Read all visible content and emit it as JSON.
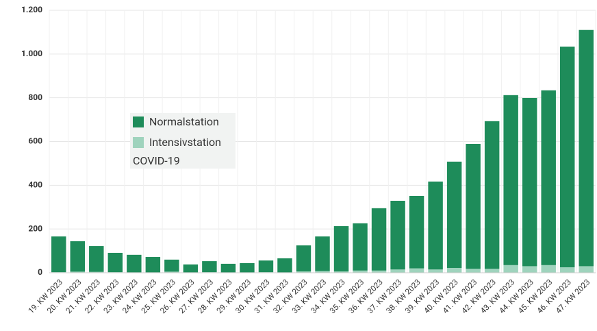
{
  "chart_data": {
    "type": "stacked-bar",
    "categories": [
      "19. KW 2023",
      "20. KW 2023",
      "21. KW 2023",
      "22. KW 2023",
      "23. KW 2023",
      "24. KW 2023",
      "25. KW 2023",
      "26. KW 2023",
      "27. KW 2023",
      "28. KW 2023",
      "29. KW 2023",
      "30. KW 2023",
      "31. KW 2023",
      "32. KW 2023",
      "33. KW 2023",
      "34. KW 2023",
      "35. KW 2023",
      "36. KW 2023",
      "37. KW 2023",
      "38. KW 2023",
      "39. KW 2023",
      "40. KW 2023",
      "41. KW 2023",
      "42. KW 2023",
      "43. KW 2023",
      "44. KW 2023",
      "45. KW 2023",
      "46. KW 2023",
      "47. KW 2023"
    ],
    "series": [
      {
        "name": "Normalstation",
        "color": "#1e8c5a",
        "values": [
          163,
          139,
          118,
          88,
          80,
          70,
          55,
          36,
          50,
          39,
          42,
          53,
          64,
          119,
          158,
          207,
          216,
          285,
          314,
          331,
          402,
          486,
          571,
          675,
          777,
          769,
          799,
          1009,
          1080
        ]
      },
      {
        "name": "Intensivstation",
        "color": "#9fd3bd",
        "values": [
          3,
          5,
          4,
          3,
          2,
          2,
          5,
          2,
          3,
          2,
          2,
          3,
          2,
          6,
          8,
          6,
          10,
          10,
          15,
          20,
          15,
          22,
          18,
          18,
          35,
          30,
          35,
          25,
          30
        ]
      }
    ],
    "legend_title": "COVID-19",
    "legend": "center-left",
    "ylim": [
      0,
      1200
    ],
    "yticks": [
      0,
      200,
      400,
      600,
      800,
      {
        "value": 1000,
        "label": "1.000"
      },
      {
        "value": 1200,
        "label": "1.200"
      }
    ],
    "grid": true
  }
}
